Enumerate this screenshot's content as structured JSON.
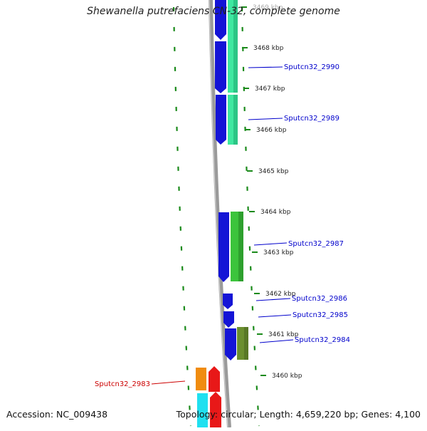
{
  "title": "Shewanella putrefaciens CN-32, complete genome",
  "footer": {
    "accession": "Accession: NC_009438",
    "topology": "Topology: circular; Length: 4,659,220 bp; Genes: 4,100"
  },
  "ticks": [
    {
      "label": "3469 kbp",
      "faded": true
    },
    {
      "label": "3468 kbp",
      "faded": false
    },
    {
      "label": "3467 kbp",
      "faded": false
    },
    {
      "label": "3466 kbp",
      "faded": false
    },
    {
      "label": "3465 kbp",
      "faded": false
    },
    {
      "label": "3464 kbp",
      "faded": false
    },
    {
      "label": "3463 kbp",
      "faded": false
    },
    {
      "label": "3462 kbp",
      "faded": false
    },
    {
      "label": "3461 kbp",
      "faded": false
    },
    {
      "label": "3460 kbp",
      "faded": false
    }
  ],
  "gene_labels": [
    {
      "text": "Sputcn32_2990",
      "color": "#0000cc"
    },
    {
      "text": "Sputcn32_2989",
      "color": "#0000cc"
    },
    {
      "text": "Sputcn32_2987",
      "color": "#0000cc"
    },
    {
      "text": "Sputcn32_2986",
      "color": "#0000cc"
    },
    {
      "text": "Sputcn32_2985",
      "color": "#0000cc"
    },
    {
      "text": "Sputcn32_2984",
      "color": "#0000cc"
    },
    {
      "text": "Sputcn32_2983",
      "color": "#cc0000"
    }
  ],
  "colors": {
    "cds_blue": "#1414d6",
    "spring_green": "#3ee8a0",
    "green": "#3cc43c",
    "olive": "#6b8f2f",
    "orange": "#f08c10",
    "red": "#e81818",
    "cyan": "#20e0f0",
    "backbone": "#8c8c8c",
    "ring_dash": "#1a8a1a"
  }
}
